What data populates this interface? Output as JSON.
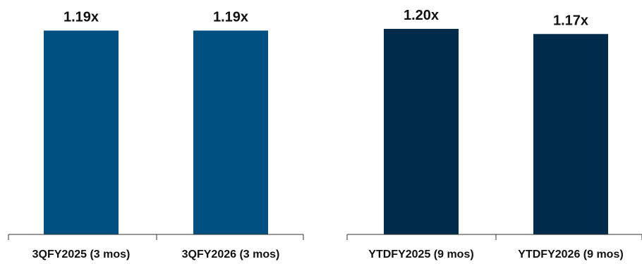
{
  "chart_data": [
    {
      "type": "bar",
      "categories": [
        "3QFY2025 (3 mos)",
        "3QFY2026 (3 mos)"
      ],
      "values": [
        1.19,
        1.19
      ],
      "value_labels": [
        "1.19x",
        "1.19x"
      ],
      "color": "#005082",
      "ylim": [
        0,
        1.2
      ],
      "grid": false
    },
    {
      "type": "bar",
      "categories": [
        "YTDFY2025 (9 mos)",
        "YTDFY2026 (9 mos)"
      ],
      "values": [
        1.2,
        1.17
      ],
      "value_labels": [
        "1.20x",
        "1.17x"
      ],
      "color": "#002b4a",
      "ylim": [
        0,
        1.2
      ],
      "grid": false
    }
  ]
}
